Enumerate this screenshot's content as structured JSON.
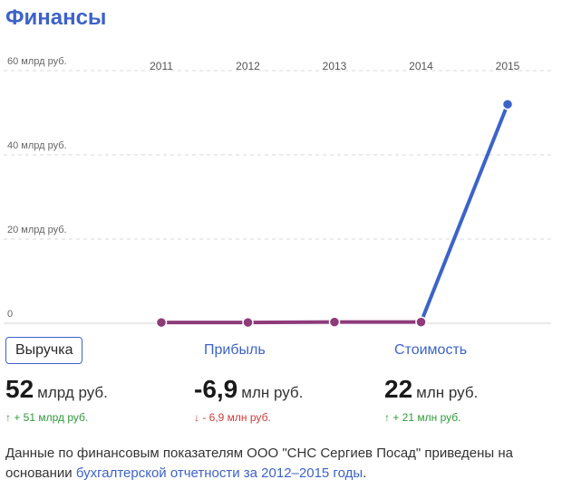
{
  "header": {
    "title": "Финансы"
  },
  "chart_data": {
    "type": "line",
    "categories": [
      "2011",
      "2012",
      "2013",
      "2014",
      "2015"
    ],
    "ylim": [
      0,
      60
    ],
    "y_ticks": [
      {
        "value": 60,
        "label": "60 млрд руб."
      },
      {
        "value": 40,
        "label": "40 млрд руб."
      },
      {
        "value": 20,
        "label": "20 млрд руб."
      },
      {
        "value": 0,
        "label": "0"
      }
    ],
    "grid": true,
    "series": [
      {
        "values": [
          0.2,
          0.2,
          0.3,
          0.3,
          52
        ],
        "color": "#3d63c9",
        "early_color": "#8e3b7a"
      }
    ]
  },
  "metrics": [
    {
      "label": "Выручка",
      "value": "52",
      "unit": "млрд руб.",
      "change": "↑ + 51 млрд руб.",
      "trend": "up",
      "active": true
    },
    {
      "label": "Прибыль",
      "value": "-6,9",
      "unit": "млн руб.",
      "change": "↓ - 6,9 млн руб.",
      "trend": "down",
      "active": false
    },
    {
      "label": "Стоимость",
      "value": "22",
      "unit": "млн руб.",
      "change": "↑ + 21 млн руб.",
      "trend": "up",
      "active": false
    }
  ],
  "note": {
    "text": "Данные по финансовым показателям ООО \"СНС Сергиев Посад\" приведены на основании ",
    "link": "бухгалтерской отчетности за 2012–2015 годы",
    "end": "."
  }
}
